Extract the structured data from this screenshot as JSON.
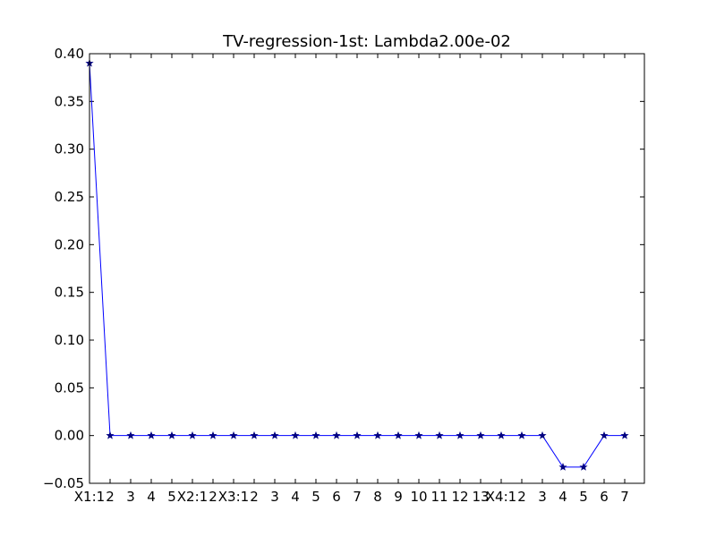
{
  "chart_data": {
    "type": "line",
    "title": "TV-regression-1st: Lambda2.00e-02",
    "xlabel": "",
    "ylabel": "",
    "ylim": [
      -0.05,
      0.4
    ],
    "yticks": [
      "−0.05",
      "0.00",
      "0.05",
      "0.10",
      "0.15",
      "0.20",
      "0.25",
      "0.30",
      "0.35",
      "0.40"
    ],
    "ytick_values": [
      -0.05,
      0.0,
      0.05,
      0.1,
      0.15,
      0.2,
      0.25,
      0.3,
      0.35,
      0.4
    ],
    "categories": [
      "X1:1",
      "2",
      "3",
      "4",
      "5",
      "X2:1",
      "2",
      "X3:1",
      "2",
      "3",
      "4",
      "5",
      "6",
      "7",
      "8",
      "9",
      "10",
      "11",
      "12",
      "13",
      "X4:1",
      "2",
      "3",
      "4",
      "5",
      "6",
      "7"
    ],
    "grid": false,
    "series": [
      {
        "marker": "star",
        "color": "#0000ff",
        "values": [
          0.39,
          0.0,
          0.0,
          0.0,
          0.0,
          0.0,
          0.0,
          0.0,
          0.0,
          0.0,
          0.0,
          0.0,
          0.0,
          0.0,
          0.0,
          0.0,
          0.0,
          0.0,
          0.0,
          0.0,
          0.0,
          0.0,
          0.0,
          -0.033,
          -0.033,
          0.0,
          0.0
        ]
      }
    ]
  }
}
